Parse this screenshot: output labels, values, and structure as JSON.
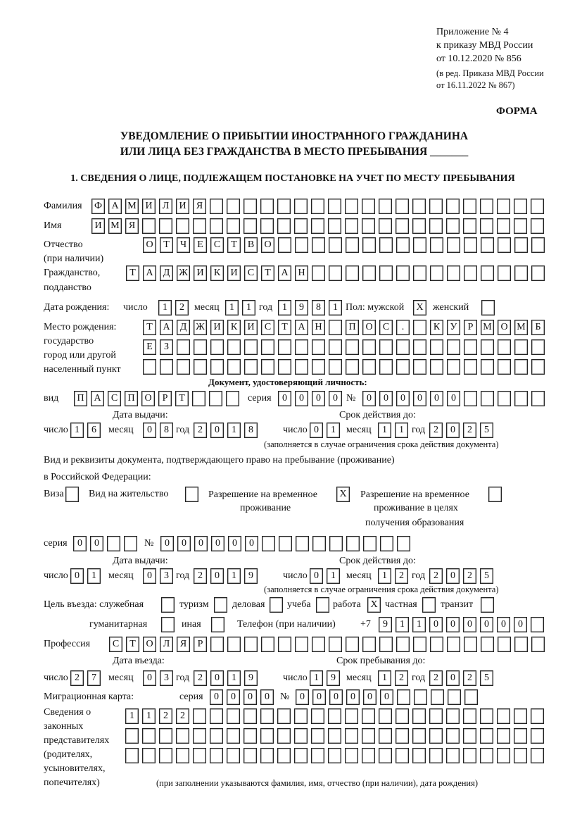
{
  "header": {
    "appendix": "Приложение № 4",
    "order": "к приказу МВД России",
    "order_date": "от 10.12.2020 № 856",
    "edition_1": "(в ред. Приказа МВД России",
    "edition_2": "от 16.11.2022 № 867)"
  },
  "form_label": "ФОРМА",
  "title_line1": "УВЕДОМЛЕНИЕ О ПРИБЫТИИ ИНОСТРАННОГО ГРАЖДАНИНА",
  "title_line2": "ИЛИ ЛИЦА БЕЗ ГРАЖДАНСТВА В МЕСТО ПРЕБЫВАНИЯ _______",
  "section1_heading": "1. СВЕДЕНИЯ О ЛИЦЕ, ПОДЛЕЖАЩЕМ ПОСТАНОВКЕ НА УЧЕТ ПО МЕСТУ ПРЕБЫВАНИЯ",
  "labels": {
    "surname": "Фамилия",
    "name": "Имя",
    "patronymic": "Отчество",
    "patronymic_note": "(при наличии)",
    "citizenship": "Гражданство,",
    "citizenship_2": "подданство",
    "birth_date": "Дата рождения:",
    "day": "число",
    "month": "месяц",
    "year": "год",
    "sex_male": "Пол: мужской",
    "sex_female": "женский",
    "birth_place_1": "Место рождения:",
    "birth_place_2": "государство",
    "birth_place_3": "город или другой",
    "birth_place_4": "населенный пункт",
    "id_doc": "Документ, удостоверяющий личность:",
    "kind": "вид",
    "series": "серия",
    "number": "№",
    "issue_date": "Дата выдачи:",
    "valid_until": "Срок действия до:",
    "validity_note": "(заполняется в случае ограничения срока действия документа)",
    "right_doc_1": "Вид и реквизиты документа, подтверждающего право на пребывание (проживание)",
    "right_doc_2": "в Российской Федерации:",
    "visa": "Виза",
    "residence_permit": "Вид на жительство",
    "temp_residence_1": "Разрешение на временное",
    "temp_residence_2": "проживание",
    "temp_edu_1": "Разрешение на временное",
    "temp_edu_2": "проживание в целях",
    "temp_edu_3": "получения образования",
    "purpose": "Цель въезда: служебная",
    "tourism": "туризм",
    "business": "деловая",
    "study": "учеба",
    "work": "работа",
    "private": "частная",
    "transit": "транзит",
    "humanitarian": "гуманитарная",
    "other": "иная",
    "phone": "Телефон (при наличии)",
    "phone_prefix": "+7",
    "profession": "Профессия",
    "entry_date": "Дата въезда:",
    "stay_until": "Срок пребывания до:",
    "migration_card": "Миграционная карта:",
    "reps_1": "Сведения о",
    "reps_2": "законных",
    "reps_3": "представителях",
    "reps_4": "(родителях,",
    "reps_5": "усыновителях,",
    "reps_6": "попечителях)",
    "reps_note": "(при заполнении указываются фамилия, имя, отчество (при наличии), дата рождения)"
  },
  "person": {
    "surname": [
      "Ф",
      "А",
      "М",
      "И",
      "Л",
      "И",
      "Я",
      "",
      "",
      "",
      "",
      "",
      "",
      "",
      "",
      "",
      "",
      "",
      "",
      "",
      "",
      "",
      "",
      "",
      "",
      "",
      ""
    ],
    "name": [
      "И",
      "М",
      "Я",
      "",
      "",
      "",
      "",
      "",
      "",
      "",
      "",
      "",
      "",
      "",
      "",
      "",
      "",
      "",
      "",
      "",
      "",
      "",
      "",
      "",
      "",
      "",
      ""
    ],
    "patronymic": [
      "О",
      "Т",
      "Ч",
      "Е",
      "С",
      "Т",
      "В",
      "О",
      "",
      "",
      "",
      "",
      "",
      "",
      "",
      "",
      "",
      "",
      "",
      "",
      "",
      "",
      "",
      ""
    ],
    "citizenship": [
      "Т",
      "А",
      "Д",
      "Ж",
      "И",
      "К",
      "И",
      "С",
      "Т",
      "А",
      "Н",
      "",
      "",
      "",
      "",
      "",
      "",
      "",
      "",
      "",
      "",
      "",
      "",
      "",
      ""
    ],
    "birth_day": [
      "1",
      "2"
    ],
    "birth_month": [
      "1",
      "1"
    ],
    "birth_year": [
      "1",
      "9",
      "8",
      "1"
    ],
    "sex_male": [
      "X"
    ],
    "sex_female": [
      ""
    ],
    "birth_place_row1": [
      "Т",
      "А",
      "Д",
      "Ж",
      "И",
      "К",
      "И",
      "С",
      "Т",
      "А",
      "Н",
      "",
      "П",
      "О",
      "С",
      ".",
      "",
      "К",
      "У",
      "Р",
      "М",
      "О",
      "М",
      "Б"
    ],
    "birth_place_row2": [
      "Е",
      "З",
      "",
      "",
      "",
      "",
      "",
      "",
      "",
      "",
      "",
      "",
      "",
      "",
      "",
      "",
      "",
      "",
      "",
      "",
      "",
      "",
      "",
      ""
    ],
    "birth_place_row3": [
      "",
      "",
      "",
      "",
      "",
      "",
      "",
      "",
      "",
      "",
      "",
      "",
      "",
      "",
      "",
      "",
      "",
      "",
      "",
      "",
      "",
      "",
      "",
      ""
    ]
  },
  "id_document": {
    "kind": [
      "П",
      "А",
      "С",
      "П",
      "О",
      "Р",
      "Т",
      "",
      "",
      ""
    ],
    "series": [
      "0",
      "0",
      "0",
      "0"
    ],
    "number": [
      "0",
      "0",
      "0",
      "0",
      "0",
      "0",
      "",
      "",
      "",
      "",
      ""
    ],
    "issue_day": [
      "1",
      "6"
    ],
    "issue_month": [
      "0",
      "8"
    ],
    "issue_year": [
      "2",
      "0",
      "1",
      "8"
    ],
    "valid_day": [
      "0",
      "1"
    ],
    "valid_month": [
      "1",
      "1"
    ],
    "valid_year": [
      "2",
      "0",
      "2",
      "5"
    ]
  },
  "stay_document": {
    "visa": [
      ""
    ],
    "residence_permit": [
      ""
    ],
    "temp_residence": [
      "X"
    ],
    "temp_edu": [
      ""
    ],
    "series": [
      "0",
      "0",
      "",
      ""
    ],
    "number": [
      "0",
      "0",
      "0",
      "0",
      "0",
      "0",
      "",
      "",
      "",
      "",
      "",
      "",
      "",
      "",
      ""
    ],
    "issue_day": [
      "0",
      "1"
    ],
    "issue_month": [
      "0",
      "3"
    ],
    "issue_year": [
      "2",
      "0",
      "1",
      "9"
    ],
    "valid_day": [
      "0",
      "1"
    ],
    "valid_month": [
      "1",
      "2"
    ],
    "valid_year": [
      "2",
      "0",
      "2",
      "5"
    ]
  },
  "purpose": {
    "official": [
      ""
    ],
    "tourism": [
      ""
    ],
    "business": [
      ""
    ],
    "study": [
      ""
    ],
    "work": [
      "X"
    ],
    "private": [
      ""
    ],
    "transit": [
      ""
    ],
    "humanitarian": [
      ""
    ],
    "other": [
      ""
    ]
  },
  "phone": [
    "9",
    "1",
    "1",
    "0",
    "0",
    "0",
    "0",
    "0",
    "0",
    ""
  ],
  "profession": [
    "С",
    "Т",
    "О",
    "Л",
    "Я",
    "Р",
    "",
    "",
    "",
    "",
    "",
    "",
    "",
    "",
    "",
    "",
    "",
    "",
    "",
    "",
    "",
    "",
    "",
    "",
    "",
    ""
  ],
  "entry": {
    "entry_day": [
      "2",
      "7"
    ],
    "entry_month": [
      "0",
      "3"
    ],
    "entry_year": [
      "2",
      "0",
      "1",
      "9"
    ],
    "stay_day": [
      "1",
      "9"
    ],
    "stay_month": [
      "1",
      "2"
    ],
    "stay_year": [
      "2",
      "0",
      "2",
      "5"
    ]
  },
  "migration_card": {
    "series": [
      "0",
      "0",
      "0",
      "0"
    ],
    "number": [
      "0",
      "0",
      "0",
      "0",
      "0",
      "0",
      "",
      "",
      "",
      "",
      ""
    ]
  },
  "representatives": {
    "row1": [
      "1",
      "1",
      "2",
      "2",
      "",
      "",
      "",
      "",
      "",
      "",
      "",
      "",
      "",
      "",
      "",
      "",
      "",
      "",
      "",
      "",
      "",
      "",
      "",
      "",
      ""
    ],
    "row2": [
      "",
      "",
      "",
      "",
      "",
      "",
      "",
      "",
      "",
      "",
      "",
      "",
      "",
      "",
      "",
      "",
      "",
      "",
      "",
      "",
      "",
      "",
      "",
      "",
      ""
    ],
    "row3": [
      "",
      "",
      "",
      "",
      "",
      "",
      "",
      "",
      "",
      "",
      "",
      "",
      "",
      "",
      "",
      "",
      "",
      "",
      "",
      "",
      "",
      "",
      "",
      "",
      ""
    ]
  }
}
